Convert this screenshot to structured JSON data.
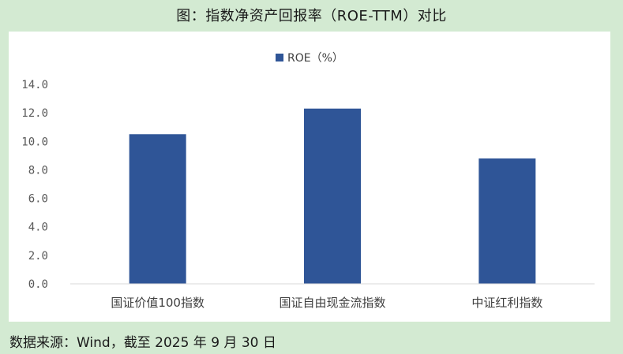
{
  "figure": {
    "title": "图：指数净资产回报率（ROE-TTM）对比",
    "source": "数据来源：Wind，截至 2025 年 9 月 30 日"
  },
  "chart_data": {
    "type": "bar",
    "categories": [
      "国证价值100指数",
      "国证自由现金流指数",
      "中证红利指数"
    ],
    "series": [
      {
        "name": "ROE（%）",
        "values": [
          10.5,
          12.3,
          8.8
        ],
        "color": "#2f5597"
      }
    ],
    "ylim": [
      0,
      14
    ],
    "yticks": [
      "0.0",
      "2.0",
      "4.0",
      "6.0",
      "8.0",
      "10.0",
      "12.0",
      "14.0"
    ],
    "ytick_values": [
      0,
      2,
      4,
      6,
      8,
      10,
      12,
      14
    ],
    "grid": false,
    "legend": "top-center"
  }
}
